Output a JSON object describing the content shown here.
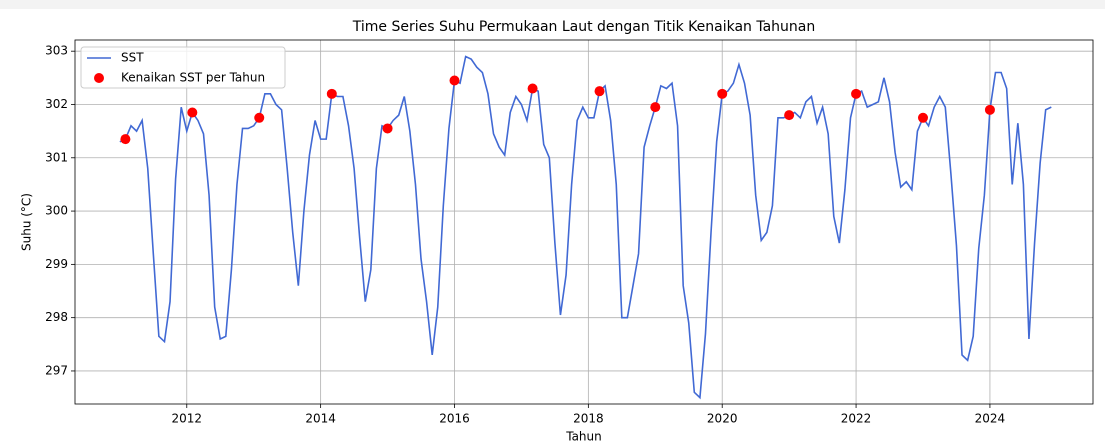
{
  "chart_data": {
    "type": "line",
    "title": "Time Series Suhu Permukaan Laut dengan Titik Kenaikan Tahunan",
    "x_label": "Tahun",
    "y_label": "Suhu (°C)",
    "xlim": [
      2010.33,
      2025.54
    ],
    "ylim": [
      296.38,
      303.21
    ],
    "xticks": [
      2012,
      2014,
      2016,
      2018,
      2020,
      2022,
      2024
    ],
    "yticks": [
      297,
      298,
      299,
      300,
      301,
      302,
      303
    ],
    "grid": true,
    "legend": "upper left",
    "series": [
      {
        "name": "SST",
        "type": "line",
        "color": "#4169d4",
        "x": [
          2011,
          2011.083,
          2011.167,
          2011.25,
          2011.333,
          2011.417,
          2011.5,
          2011.583,
          2011.667,
          2011.75,
          2011.833,
          2011.917,
          2012,
          2012.083,
          2012.167,
          2012.25,
          2012.333,
          2012.417,
          2012.5,
          2012.583,
          2012.667,
          2012.75,
          2012.833,
          2012.917,
          2013,
          2013.083,
          2013.167,
          2013.25,
          2013.333,
          2013.417,
          2013.5,
          2013.583,
          2013.667,
          2013.75,
          2013.833,
          2013.917,
          2014,
          2014.083,
          2014.167,
          2014.25,
          2014.333,
          2014.417,
          2014.5,
          2014.583,
          2014.667,
          2014.75,
          2014.833,
          2014.917,
          2015,
          2015.083,
          2015.167,
          2015.25,
          2015.333,
          2015.417,
          2015.5,
          2015.583,
          2015.667,
          2015.75,
          2015.833,
          2015.917,
          2016,
          2016.083,
          2016.167,
          2016.25,
          2016.333,
          2016.417,
          2016.5,
          2016.583,
          2016.667,
          2016.75,
          2016.833,
          2016.917,
          2017,
          2017.083,
          2017.167,
          2017.25,
          2017.333,
          2017.417,
          2017.5,
          2017.583,
          2017.667,
          2017.75,
          2017.833,
          2017.917,
          2018,
          2018.083,
          2018.167,
          2018.25,
          2018.333,
          2018.417,
          2018.5,
          2018.583,
          2018.667,
          2018.75,
          2018.833,
          2018.917,
          2019,
          2019.083,
          2019.167,
          2019.25,
          2019.333,
          2019.417,
          2019.5,
          2019.583,
          2019.667,
          2019.75,
          2019.833,
          2019.917,
          2020,
          2020.083,
          2020.167,
          2020.25,
          2020.333,
          2020.417,
          2020.5,
          2020.583,
          2020.667,
          2020.75,
          2020.833,
          2020.917,
          2021,
          2021.083,
          2021.167,
          2021.25,
          2021.333,
          2021.417,
          2021.5,
          2021.583,
          2021.667,
          2021.75,
          2021.833,
          2021.917,
          2022,
          2022.083,
          2022.167,
          2022.25,
          2022.333,
          2022.417,
          2022.5,
          2022.583,
          2022.667,
          2022.75,
          2022.833,
          2022.917,
          2023,
          2023.083,
          2023.167,
          2023.25,
          2023.333,
          2023.417,
          2023.5,
          2023.583,
          2023.667,
          2023.75,
          2023.833,
          2023.917,
          2024,
          2024.083,
          2024.167,
          2024.25,
          2024.333,
          2024.417,
          2024.5,
          2024.583,
          2024.667,
          2024.75,
          2024.833,
          2024.917
        ],
        "values": [
          301.3,
          301.35,
          301.6,
          301.5,
          301.7,
          300.8,
          299.2,
          297.65,
          297.55,
          298.3,
          300.6,
          301.95,
          301.5,
          301.85,
          301.7,
          301.45,
          300.3,
          298.2,
          297.6,
          297.65,
          298.9,
          300.5,
          301.55,
          301.55,
          301.6,
          301.75,
          302.2,
          302.2,
          302.0,
          301.9,
          300.8,
          299.6,
          298.6,
          300.0,
          301.05,
          301.7,
          301.35,
          301.35,
          302.2,
          302.15,
          302.15,
          301.6,
          300.8,
          299.5,
          298.3,
          298.9,
          300.8,
          301.6,
          301.55,
          301.7,
          301.8,
          302.15,
          301.5,
          300.5,
          299.1,
          298.3,
          297.3,
          298.2,
          300.1,
          301.55,
          302.45,
          302.4,
          302.9,
          302.85,
          302.7,
          302.6,
          302.2,
          301.45,
          301.2,
          301.05,
          301.85,
          302.15,
          302.0,
          301.7,
          302.3,
          302.25,
          301.25,
          301.0,
          299.4,
          298.05,
          298.8,
          300.5,
          301.7,
          301.95,
          301.75,
          301.75,
          302.25,
          302.35,
          301.7,
          300.5,
          298.0,
          298.0,
          298.6,
          299.2,
          301.2,
          301.6,
          301.95,
          302.35,
          302.3,
          302.4,
          301.6,
          298.6,
          297.9,
          296.6,
          296.5,
          297.7,
          299.6,
          301.3,
          302.2,
          302.25,
          302.4,
          302.75,
          302.4,
          301.8,
          300.3,
          299.45,
          299.6,
          300.1,
          301.75,
          301.75,
          301.8,
          301.85,
          301.75,
          302.05,
          302.15,
          301.65,
          301.95,
          301.45,
          299.9,
          299.4,
          300.4,
          301.75,
          302.2,
          302.25,
          301.95,
          302.0,
          302.05,
          302.5,
          302.05,
          301.1,
          300.45,
          300.55,
          300.4,
          301.5,
          301.75,
          301.6,
          301.95,
          302.15,
          301.95,
          300.7,
          299.35,
          297.3,
          297.2,
          297.65,
          299.3,
          300.3,
          301.9,
          302.6,
          302.6,
          302.3,
          300.5,
          301.65,
          300.5,
          297.6,
          299.4,
          300.9,
          301.9,
          301.95
        ]
      },
      {
        "name": "Kenaikan SST per Tahun",
        "type": "scatter",
        "color": "#ff0000",
        "x": [
          2011.083,
          2012.083,
          2013.083,
          2014.167,
          2015,
          2016,
          2017.167,
          2018.167,
          2019,
          2020,
          2021,
          2022,
          2023,
          2024
        ],
        "values": [
          301.35,
          301.85,
          301.75,
          302.2,
          301.55,
          302.45,
          302.3,
          302.25,
          301.95,
          302.2,
          301.8,
          302.2,
          301.75,
          301.9
        ]
      }
    ]
  }
}
